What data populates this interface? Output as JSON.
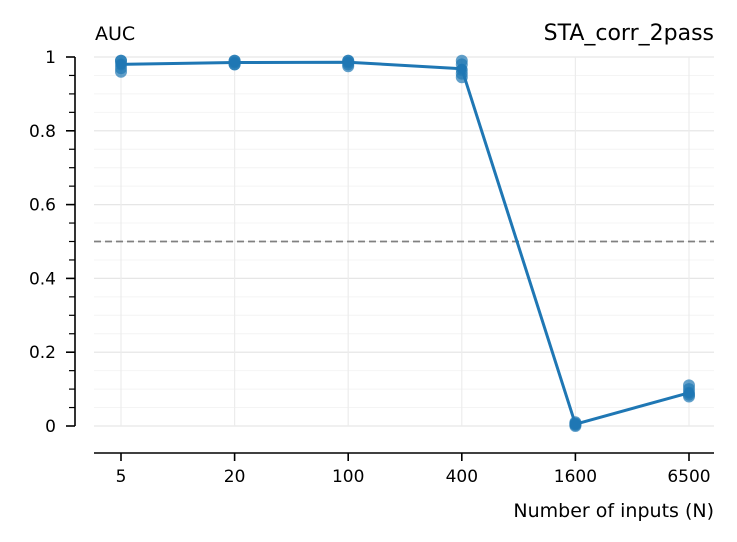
{
  "chart_data": {
    "type": "line",
    "title": "STA_corr_2pass",
    "ylabel": "AUC",
    "xlabel": "Number of inputs (N)",
    "categories": [
      "5",
      "20",
      "100",
      "400",
      "1600",
      "6500"
    ],
    "series": [
      {
        "values": [
          0.98,
          0.985,
          0.986,
          0.968,
          0.005,
          0.09
        ],
        "points": [
          [
            0.96,
            0.97,
            0.98,
            0.99,
            0.99
          ],
          [
            0.98,
            0.98,
            0.985,
            0.99,
            0.99
          ],
          [
            0.975,
            0.98,
            0.985,
            0.99,
            0.99
          ],
          [
            0.945,
            0.955,
            0.965,
            0.98,
            0.99
          ],
          [
            0.0,
            0.003,
            0.005,
            0.007,
            0.01
          ],
          [
            0.08,
            0.085,
            0.09,
            0.1,
            0.11
          ]
        ],
        "color": "#1f77b4"
      }
    ],
    "reference_line": {
      "y": 0.5,
      "color": "#808080",
      "style": "dashed"
    },
    "ylim": [
      0,
      1
    ],
    "yticks": [
      0,
      0.2,
      0.4,
      0.6,
      0.8,
      1
    ],
    "ytick_labels": [
      "0",
      "0.2",
      "0.4",
      "0.6",
      "0.8",
      "1"
    ],
    "grid": true,
    "legend": "none"
  }
}
